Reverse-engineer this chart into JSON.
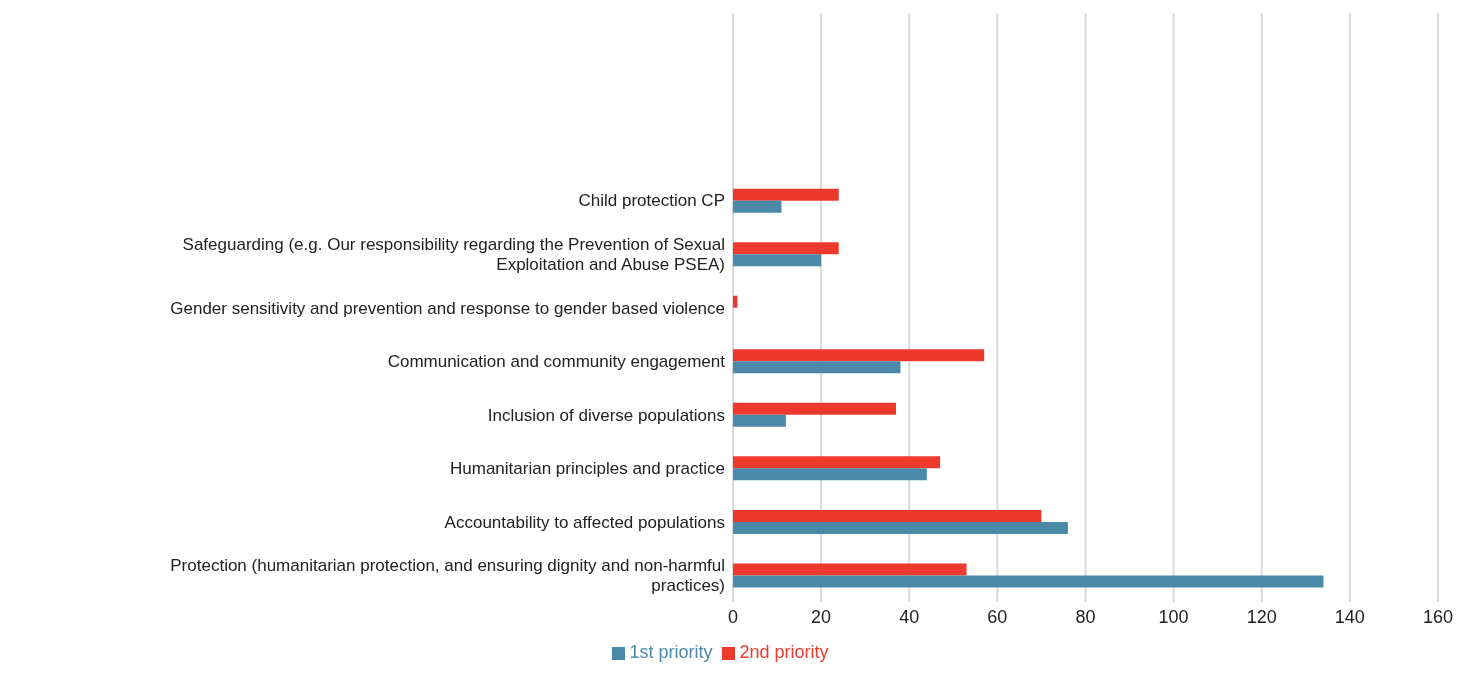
{
  "chart_data": {
    "type": "bar",
    "orientation": "horizontal",
    "categories": [
      null,
      null,
      null,
      "Child protection CP",
      "Safeguarding (e.g. Our responsibility regarding the Prevention of Sexual Exploitation and Abuse PSEA)",
      "Gender sensitivity and prevention and response to gender based violence",
      "Communication and community engagement",
      "Inclusion of diverse populations",
      "Humanitarian principles and practice",
      "Accountability to affected populations",
      "Protection (humanitarian protection, and ensuring dignity and non-harmful practices)"
    ],
    "series": [
      {
        "name": "2nd priority",
        "color": "#ee3a2c",
        "values": [
          null,
          null,
          null,
          24,
          24,
          1,
          57,
          37,
          47,
          70,
          53
        ]
      },
      {
        "name": "1st priority",
        "color": "#4a8aa8",
        "values": [
          null,
          null,
          null,
          11,
          20,
          0,
          38,
          12,
          44,
          76,
          134
        ]
      }
    ],
    "xlim": [
      0,
      160
    ],
    "xticks": [
      0,
      20,
      40,
      60,
      80,
      100,
      120,
      140,
      160
    ],
    "grid": "x",
    "legend": "bottom"
  }
}
